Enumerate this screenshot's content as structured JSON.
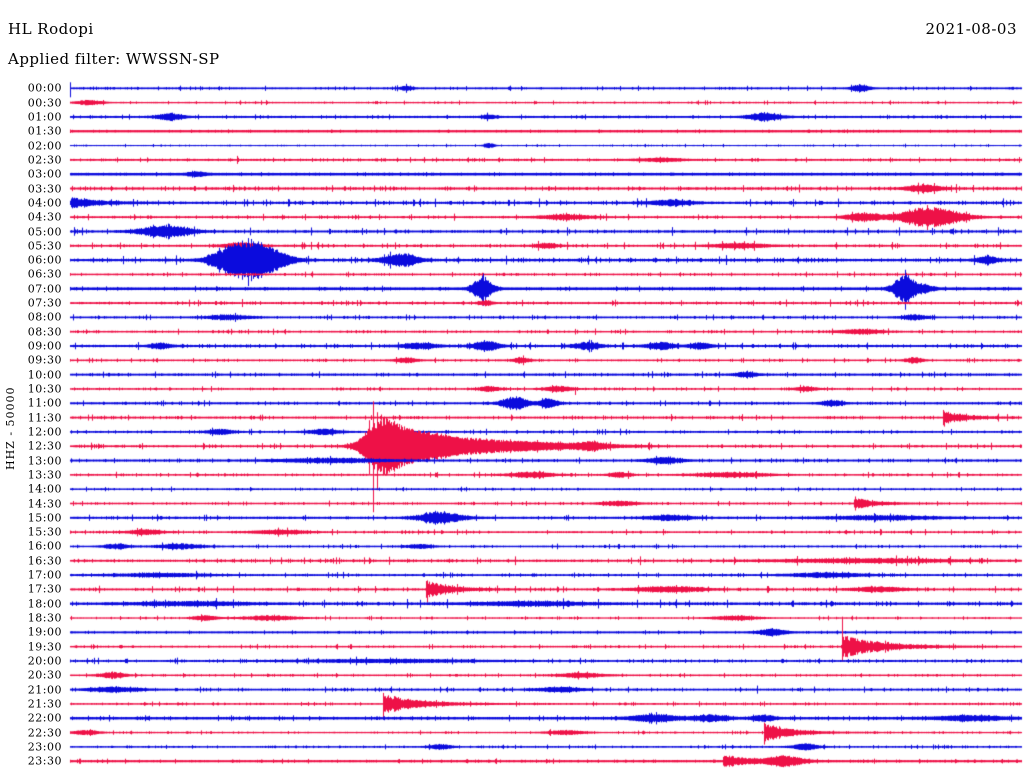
{
  "header": {
    "station": "HL Rodopi",
    "filter_label": "Applied filter: WWSSN-SP",
    "date": "2021-08-03"
  },
  "axis": {
    "scale_label": "HHZ - 50000"
  },
  "colors": {
    "background": "#ffffff",
    "text": "#000000",
    "blue": "#0b0bdd",
    "red": "#ee1147"
  },
  "chart_data": {
    "type": "line",
    "subtype": "helicorder-dayplot",
    "title": "HL Rodopi",
    "date": "2021-08-03",
    "filter": "WWSSN-SP",
    "channel_scale_label": "HHZ - 50000",
    "minutes_per_row": 30,
    "x_range_minutes": [
      0,
      30
    ],
    "rows_count": 48,
    "trace_color_pattern": [
      "blue",
      "red"
    ],
    "rows": [
      {
        "label": "00:00",
        "color": "blue",
        "base": 0.8,
        "noise": 0.55,
        "events": [
          [
            "s",
            0,
            6,
            9
          ],
          [
            "b",
            10.6,
            0.15,
            2
          ],
          [
            "b",
            24.9,
            0.2,
            3.5
          ]
        ]
      },
      {
        "label": "00:30",
        "color": "red",
        "base": 0.6,
        "noise": 0.5,
        "events": [
          [
            "b",
            0.6,
            0.3,
            2.2
          ]
        ]
      },
      {
        "label": "01:00",
        "color": "blue",
        "base": 0.9,
        "noise": 0.5,
        "events": [
          [
            "b",
            3.15,
            0.3,
            3
          ],
          [
            "b",
            21.9,
            0.35,
            4
          ],
          [
            "b",
            13.2,
            0.15,
            1.8
          ]
        ]
      },
      {
        "label": "01:30",
        "color": "red",
        "base": 1.1,
        "noise": 0.25,
        "events": []
      },
      {
        "label": "02:00",
        "color": "blue",
        "base": 0.5,
        "noise": 0.35,
        "events": [
          [
            "b",
            13.2,
            0.12,
            2.2
          ]
        ]
      },
      {
        "label": "02:30",
        "color": "red",
        "base": 0.8,
        "noise": 0.6,
        "events": [
          [
            "s",
            5.26,
            4,
            4
          ],
          [
            "b",
            18.6,
            0.5,
            1.5
          ]
        ]
      },
      {
        "label": "03:00",
        "color": "blue",
        "base": 1.2,
        "noise": 0.3,
        "events": [
          [
            "b",
            4.0,
            0.2,
            2
          ]
        ]
      },
      {
        "label": "03:30",
        "color": "red",
        "base": 0.9,
        "noise": 1.0,
        "events": [
          [
            "b",
            26.9,
            0.4,
            3.5
          ]
        ]
      },
      {
        "label": "04:00",
        "color": "blue",
        "base": 0.9,
        "noise": 1.0,
        "events": [
          [
            "d",
            0.02,
            0.8,
            5
          ],
          [
            "b",
            18.9,
            0.5,
            2.5
          ]
        ]
      },
      {
        "label": "04:30",
        "color": "red",
        "base": 0.8,
        "noise": 0.7,
        "events": [
          [
            "b",
            15.6,
            0.6,
            2.2
          ],
          [
            "b",
            25.0,
            0.4,
            4
          ],
          [
            "b",
            27.1,
            0.7,
            10
          ],
          [
            "s",
            27.0,
            12,
            13
          ]
        ]
      },
      {
        "label": "05:00",
        "color": "blue",
        "base": 0.9,
        "noise": 1.0,
        "events": [
          [
            "b",
            3.0,
            0.6,
            5.5
          ],
          [
            "s",
            24.5,
            4,
            4
          ]
        ]
      },
      {
        "label": "05:30",
        "color": "red",
        "base": 0.8,
        "noise": 0.9,
        "events": [
          [
            "b",
            5.4,
            0.4,
            3
          ],
          [
            "b",
            15.0,
            0.25,
            2.5
          ],
          [
            "b",
            21.1,
            0.6,
            2.2
          ]
        ]
      },
      {
        "label": "06:00",
        "color": "blue",
        "base": 1.0,
        "noise": 1.1,
        "events": [
          [
            "b",
            5.0,
            0.45,
            6
          ],
          [
            "b",
            5.6,
            0.6,
            15
          ],
          [
            "b",
            6.3,
            0.5,
            6
          ],
          [
            "s",
            5.6,
            22,
            26
          ],
          [
            "s",
            5.9,
            16,
            18
          ],
          [
            "s",
            5.45,
            13,
            12
          ],
          [
            "b",
            10.4,
            0.4,
            6
          ],
          [
            "b",
            28.9,
            0.25,
            3.5
          ]
        ]
      },
      {
        "label": "06:30",
        "color": "red",
        "base": 0.7,
        "noise": 0.7,
        "events": [
          [
            "s",
            7.63,
            3,
            3
          ]
        ]
      },
      {
        "label": "07:00",
        "color": "blue",
        "base": 1.2,
        "noise": 0.5,
        "events": [
          [
            "b",
            13.0,
            0.22,
            12
          ],
          [
            "s",
            13.0,
            15,
            17
          ],
          [
            "b",
            26.3,
            0.25,
            14
          ],
          [
            "s",
            26.32,
            19,
            21
          ],
          [
            "b",
            26.95,
            0.2,
            3
          ]
        ]
      },
      {
        "label": "07:30",
        "color": "red",
        "base": 0.8,
        "noise": 0.8,
        "events": [
          [
            "s",
            5.42,
            4,
            4
          ],
          [
            "b",
            13.1,
            0.15,
            2.5
          ]
        ]
      },
      {
        "label": "08:00",
        "color": "blue",
        "base": 0.8,
        "noise": 0.6,
        "events": [
          [
            "b",
            5.0,
            0.5,
            2.2
          ],
          [
            "b",
            26.6,
            0.3,
            2.2
          ]
        ]
      },
      {
        "label": "08:30",
        "color": "red",
        "base": 0.7,
        "noise": 0.7,
        "events": [
          [
            "b",
            24.9,
            0.5,
            2.2
          ]
        ]
      },
      {
        "label": "09:00",
        "color": "blue",
        "base": 0.9,
        "noise": 0.8,
        "events": [
          [
            "b",
            2.84,
            0.25,
            2.5
          ],
          [
            "b",
            11.0,
            0.4,
            2.8
          ],
          [
            "b",
            13.1,
            0.3,
            4.5
          ],
          [
            "s",
            13.05,
            6,
            6
          ],
          [
            "b",
            16.3,
            0.3,
            3.5
          ],
          [
            "b",
            18.6,
            0.3,
            3.5
          ],
          [
            "b",
            19.85,
            0.25,
            2.8
          ]
        ]
      },
      {
        "label": "09:30",
        "color": "red",
        "base": 0.7,
        "noise": 0.6,
        "events": [
          [
            "b",
            10.6,
            0.25,
            2.3
          ],
          [
            "b",
            14.2,
            0.2,
            2.6
          ],
          [
            "b",
            26.6,
            0.2,
            2.6
          ]
        ]
      },
      {
        "label": "10:00",
        "color": "blue",
        "base": 0.9,
        "noise": 0.7,
        "events": [
          [
            "b",
            21.3,
            0.25,
            2.3
          ]
        ]
      },
      {
        "label": "10:30",
        "color": "red",
        "base": 0.7,
        "noise": 0.6,
        "events": [
          [
            "b",
            13.2,
            0.25,
            2.3
          ],
          [
            "b",
            15.4,
            0.3,
            2.6
          ],
          [
            "s",
            15.9,
            2,
            6
          ],
          [
            "b",
            23.2,
            0.25,
            2
          ]
        ]
      },
      {
        "label": "11:00",
        "color": "blue",
        "base": 0.9,
        "noise": 0.6,
        "events": [
          [
            "b",
            14.0,
            0.3,
            6.5
          ],
          [
            "b",
            15.05,
            0.22,
            4
          ],
          [
            "b",
            24.0,
            0.25,
            2.6
          ]
        ]
      },
      {
        "label": "11:30",
        "color": "red",
        "base": 0.8,
        "noise": 0.8,
        "events": [
          [
            "d",
            27.5,
            0.6,
            7
          ],
          [
            "s",
            27.55,
            4,
            9
          ]
        ]
      },
      {
        "label": "12:00",
        "color": "blue",
        "base": 0.8,
        "noise": 0.7,
        "events": [
          [
            "b",
            4.73,
            0.3,
            2.2
          ],
          [
            "b",
            8.0,
            0.35,
            2.6
          ]
        ]
      },
      {
        "label": "12:30",
        "color": "red",
        "base": 0.8,
        "noise": 0.8,
        "events": [
          [
            "b",
            9.75,
            0.4,
            20
          ],
          [
            "b",
            10.3,
            0.6,
            13
          ],
          [
            "b",
            11.1,
            0.7,
            8
          ],
          [
            "b",
            12.1,
            0.9,
            5.5
          ],
          [
            "b",
            13.5,
            1.1,
            3.6
          ],
          [
            "b",
            15.5,
            1.4,
            2.4
          ],
          [
            "s",
            9.55,
            45,
            66
          ],
          [
            "s",
            9.68,
            34,
            44
          ],
          [
            "s",
            9.42,
            26,
            28
          ],
          [
            "b",
            16.4,
            0.3,
            2.6
          ]
        ]
      },
      {
        "label": "13:00",
        "color": "blue",
        "base": 0.9,
        "noise": 0.7,
        "events": [
          [
            "b",
            8.2,
            1.2,
            1.8
          ],
          [
            "b",
            18.75,
            0.4,
            2.6
          ]
        ]
      },
      {
        "label": "13:30",
        "color": "red",
        "base": 0.7,
        "noise": 0.7,
        "events": [
          [
            "b",
            14.5,
            0.5,
            2.6
          ],
          [
            "b",
            17.3,
            0.25,
            2.3
          ],
          [
            "b",
            20.8,
            0.8,
            2.2
          ]
        ]
      },
      {
        "label": "14:00",
        "color": "blue",
        "base": 0.7,
        "noise": 0.5,
        "events": []
      },
      {
        "label": "14:30",
        "color": "red",
        "base": 0.7,
        "noise": 0.6,
        "events": [
          [
            "b",
            17.3,
            0.4,
            2.2
          ],
          [
            "d",
            24.7,
            0.6,
            6
          ],
          [
            "s",
            24.74,
            7,
            7
          ]
        ]
      },
      {
        "label": "15:00",
        "color": "blue",
        "base": 0.9,
        "noise": 0.7,
        "events": [
          [
            "b",
            11.66,
            0.5,
            5.5
          ],
          [
            "b",
            18.9,
            0.5,
            2.3
          ],
          [
            "b",
            25.6,
            1.2,
            1.8
          ]
        ]
      },
      {
        "label": "15:30",
        "color": "red",
        "base": 0.7,
        "noise": 0.7,
        "events": [
          [
            "b",
            2.36,
            0.4,
            2.3
          ],
          [
            "b",
            6.6,
            0.6,
            1.9
          ]
        ]
      },
      {
        "label": "16:00",
        "color": "blue",
        "base": 0.7,
        "noise": 0.6,
        "events": [
          [
            "b",
            1.45,
            0.3,
            2.3
          ],
          [
            "b",
            3.45,
            0.5,
            2.3
          ],
          [
            "b",
            11.0,
            0.3,
            1.9
          ]
        ]
      },
      {
        "label": "16:30",
        "color": "red",
        "base": 0.8,
        "noise": 1.0,
        "events": [
          [
            "b",
            25.0,
            2.0,
            1.8
          ]
        ]
      },
      {
        "label": "17:00",
        "color": "blue",
        "base": 0.8,
        "noise": 0.7,
        "events": [
          [
            "b",
            2.8,
            1.0,
            1.7
          ],
          [
            "b",
            23.9,
            0.8,
            2.2
          ]
        ]
      },
      {
        "label": "17:30",
        "color": "red",
        "base": 0.8,
        "noise": 0.8,
        "events": [
          [
            "d",
            11.2,
            0.7,
            9
          ],
          [
            "s",
            11.25,
            9,
            13
          ],
          [
            "b",
            18.9,
            0.8,
            2.6
          ],
          [
            "b",
            25.5,
            0.6,
            2.2
          ]
        ]
      },
      {
        "label": "18:00",
        "color": "blue",
        "base": 1.0,
        "noise": 1.0,
        "events": [
          [
            "b",
            3.8,
            1.3,
            1.7
          ],
          [
            "b",
            14.5,
            1.3,
            1.7
          ]
        ]
      },
      {
        "label": "18:30",
        "color": "red",
        "base": 0.6,
        "noise": 0.5,
        "events": [
          [
            "b",
            4.25,
            0.3,
            2.2
          ],
          [
            "b",
            6.3,
            0.6,
            2.2
          ],
          [
            "b",
            20.95,
            0.5,
            2.2
          ]
        ]
      },
      {
        "label": "19:00",
        "color": "blue",
        "base": 0.9,
        "noise": 0.4,
        "events": [
          [
            "b",
            22.1,
            0.3,
            3.2
          ]
        ]
      },
      {
        "label": "19:30",
        "color": "red",
        "base": 0.7,
        "noise": 0.6,
        "events": [
          [
            "d",
            24.3,
            1.1,
            12
          ],
          [
            "s",
            24.32,
            30,
            15
          ]
        ]
      },
      {
        "label": "20:00",
        "color": "blue",
        "base": 0.8,
        "noise": 0.7,
        "events": [
          [
            "b",
            10.0,
            2.0,
            1.4
          ]
        ]
      },
      {
        "label": "20:30",
        "color": "red",
        "base": 0.7,
        "noise": 0.5,
        "events": [
          [
            "b",
            1.32,
            0.3,
            2.8
          ],
          [
            "b",
            16.1,
            0.5,
            2.3
          ]
        ]
      },
      {
        "label": "21:00",
        "color": "blue",
        "base": 0.8,
        "noise": 0.7,
        "events": [
          [
            "b",
            1.4,
            0.6,
            2.3
          ],
          [
            "b",
            15.4,
            0.5,
            2.3
          ],
          [
            "s",
            21.65,
            4,
            4
          ]
        ]
      },
      {
        "label": "21:30",
        "color": "red",
        "base": 0.7,
        "noise": 0.6,
        "events": [
          [
            "d",
            9.85,
            1.0,
            10
          ],
          [
            "s",
            9.87,
            11,
            13
          ]
        ]
      },
      {
        "label": "22:00",
        "color": "blue",
        "base": 1.1,
        "noise": 0.6,
        "events": [
          [
            "b",
            18.4,
            0.55,
            3.2
          ],
          [
            "b",
            20.2,
            0.4,
            2.8
          ],
          [
            "b",
            21.85,
            0.25,
            2.8
          ],
          [
            "b",
            28.35,
            0.8,
            2.2
          ]
        ]
      },
      {
        "label": "22:30",
        "color": "red",
        "base": 0.6,
        "noise": 0.5,
        "events": [
          [
            "b",
            0.5,
            0.3,
            2.2
          ],
          [
            "b",
            15.6,
            0.4,
            2.2
          ],
          [
            "d",
            21.84,
            0.8,
            9
          ],
          [
            "s",
            21.86,
            10,
            12
          ]
        ]
      },
      {
        "label": "23:00",
        "color": "blue",
        "base": 0.7,
        "noise": 0.5,
        "events": [
          [
            "b",
            11.66,
            0.25,
            2.3
          ],
          [
            "b",
            23.16,
            0.3,
            2.8
          ]
        ]
      },
      {
        "label": "23:30",
        "color": "red",
        "base": 1.0,
        "noise": 0.5,
        "events": [
          [
            "d",
            20.55,
            0.8,
            6
          ],
          [
            "b",
            22.53,
            0.4,
            4.5
          ]
        ]
      }
    ]
  }
}
